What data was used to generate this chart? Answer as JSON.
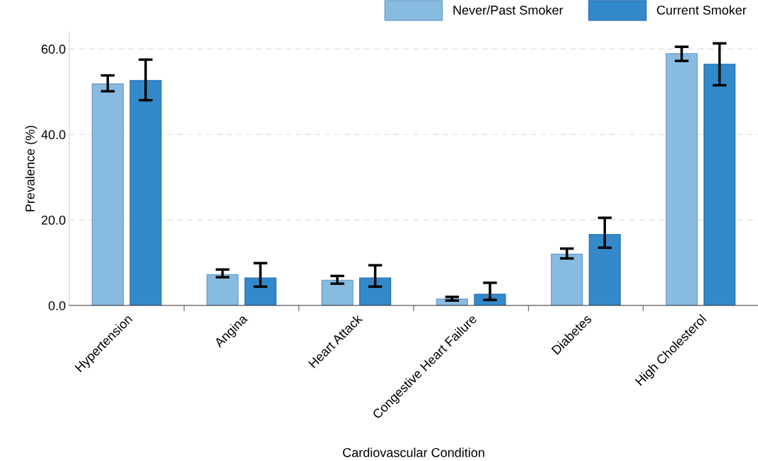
{
  "chart_data": {
    "type": "bar",
    "xlabel": "Cardiovascular Condition",
    "ylabel": "Prevalence (%)",
    "categories": [
      "Hypertension",
      "Angina",
      "Heart Attack",
      "Congestive Heart Failure",
      "Diabetes",
      "High Cholesterol"
    ],
    "series": [
      {
        "name": "Never/Past Smoker",
        "color": "#88bbe0",
        "values": [
          51.8,
          7.2,
          5.9,
          1.5,
          12.0,
          58.9
        ],
        "errors": [
          [
            50.1,
            53.8
          ],
          [
            6.6,
            8.4
          ],
          [
            5.1,
            6.9
          ],
          [
            1.15,
            2.0
          ],
          [
            11.0,
            13.3
          ],
          [
            57.2,
            60.5
          ]
        ]
      },
      {
        "name": "Current Smoker",
        "color": "#3389c9",
        "values": [
          52.6,
          6.4,
          6.4,
          2.6,
          16.6,
          56.4
        ],
        "errors": [
          [
            48.0,
            57.5
          ],
          [
            4.4,
            9.9
          ],
          [
            4.4,
            9.4
          ],
          [
            1.3,
            5.3
          ],
          [
            13.5,
            20.5
          ],
          [
            51.5,
            61.3
          ]
        ]
      }
    ],
    "ylim": [
      0,
      64
    ],
    "yticks": [
      {
        "value": 0,
        "label": "0.0"
      },
      {
        "value": 20,
        "label": "20.0"
      },
      {
        "value": 40,
        "label": "40.0"
      },
      {
        "value": 60,
        "label": "60.0"
      }
    ],
    "grid": "y",
    "legend": "top right"
  }
}
